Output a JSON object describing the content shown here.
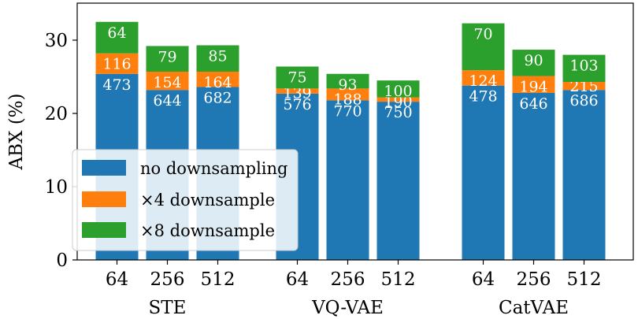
{
  "chart_data": {
    "type": "bar",
    "stacked": true,
    "ylabel": "ABX (%)",
    "xlabel": "",
    "ylim": [
      0,
      34
    ],
    "yticks": [
      0,
      10,
      20,
      30
    ],
    "legend_position": "lower-left",
    "groups": [
      {
        "name": "STE",
        "bars": [
          {
            "tick": "64",
            "segments": [
              {
                "value": 25.4,
                "label": "473"
              },
              {
                "value": 2.8,
                "label": "116"
              },
              {
                "value": 4.3,
                "label": "64"
              }
            ]
          },
          {
            "tick": "256",
            "segments": [
              {
                "value": 23.2,
                "label": "644"
              },
              {
                "value": 2.5,
                "label": "154"
              },
              {
                "value": 3.5,
                "label": "79"
              }
            ]
          },
          {
            "tick": "512",
            "segments": [
              {
                "value": 23.6,
                "label": "682"
              },
              {
                "value": 2.1,
                "label": "164"
              },
              {
                "value": 3.6,
                "label": "85"
              }
            ]
          }
        ]
      },
      {
        "name": "VQ-VAE",
        "bars": [
          {
            "tick": "64",
            "segments": [
              {
                "value": 22.7,
                "label": "576"
              },
              {
                "value": 0.7,
                "label": "139"
              },
              {
                "value": 3.0,
                "label": "75"
              }
            ]
          },
          {
            "tick": "256",
            "segments": [
              {
                "value": 21.8,
                "label": "770"
              },
              {
                "value": 1.6,
                "label": "188"
              },
              {
                "value": 2.0,
                "label": "93"
              }
            ]
          },
          {
            "tick": "512",
            "segments": [
              {
                "value": 21.6,
                "label": "750"
              },
              {
                "value": 0.6,
                "label": "190"
              },
              {
                "value": 2.3,
                "label": "100"
              }
            ]
          }
        ]
      },
      {
        "name": "CatVAE",
        "bars": [
          {
            "tick": "64",
            "segments": [
              {
                "value": 23.8,
                "label": "478"
              },
              {
                "value": 2.1,
                "label": "124"
              },
              {
                "value": 6.4,
                "label": "70"
              }
            ]
          },
          {
            "tick": "256",
            "segments": [
              {
                "value": 22.8,
                "label": "646"
              },
              {
                "value": 2.3,
                "label": "194"
              },
              {
                "value": 3.6,
                "label": "90"
              }
            ]
          },
          {
            "tick": "512",
            "segments": [
              {
                "value": 23.2,
                "label": "686"
              },
              {
                "value": 1.1,
                "label": "215"
              },
              {
                "value": 3.7,
                "label": "103"
              }
            ]
          }
        ]
      }
    ],
    "series": [
      {
        "name": "no downsampling",
        "color": "#1f77b4"
      },
      {
        "name": "×4 downsample",
        "color": "#ff7f0e"
      },
      {
        "name": "×8 downsample",
        "color": "#2ca02c"
      }
    ]
  }
}
